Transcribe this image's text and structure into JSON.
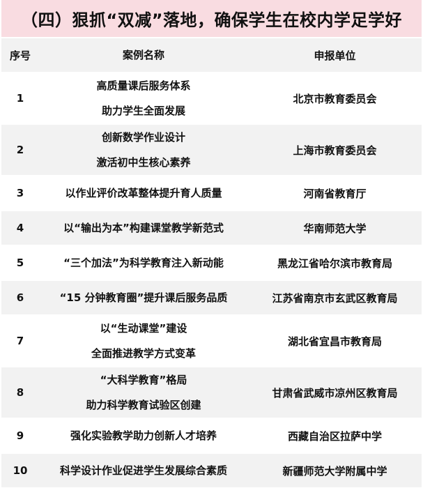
{
  "title": "（四）狠抓“双减”落地，确保学生在校内学足学好",
  "columns": [
    "序号",
    "案例名称",
    "申报单位"
  ],
  "rows": [
    {
      "no": "1",
      "name": [
        "高质量课后服务体系",
        "助力学生全面发展"
      ],
      "unit": "北京市教育委员会"
    },
    {
      "no": "2",
      "name": [
        "创新数学作业设计",
        "激活初中生核心素养"
      ],
      "unit": "上海市教育委员会"
    },
    {
      "no": "3",
      "name": [
        "以作业评价改革整体提升育人质量"
      ],
      "unit": "河南省教育厅"
    },
    {
      "no": "4",
      "name": [
        "以“输出为本”构建课堂教学新范式"
      ],
      "unit": "华南师范大学"
    },
    {
      "no": "5",
      "name": [
        "“三个加法”为科学教育注入新动能"
      ],
      "unit": "黑龙江省哈尔滨市教育局"
    },
    {
      "no": "6",
      "name": [
        "“15 分钟教育圈”提升课后服务品质"
      ],
      "unit": "江苏省南京市玄武区教育局"
    },
    {
      "no": "7",
      "name": [
        "以“生动课堂”建设",
        "全面推进教学方式变革"
      ],
      "unit": "湖北省宜昌市教育局"
    },
    {
      "no": "8",
      "name": [
        "“大科学教育”格局",
        "助力科学教育试验区创建"
      ],
      "unit": "甘肃省武威市凉州区教育局"
    },
    {
      "no": "9",
      "name": [
        "强化实验教学助力创新人才培养"
      ],
      "unit": "西藏自治区拉萨中学"
    },
    {
      "no": "10",
      "name": [
        "科学设计作业促进学生发展综合素质"
      ],
      "unit": "新疆师范大学附属中学"
    }
  ],
  "colors": {
    "title_bg": "#f9dce1",
    "stripe": "#f2f2f2"
  }
}
